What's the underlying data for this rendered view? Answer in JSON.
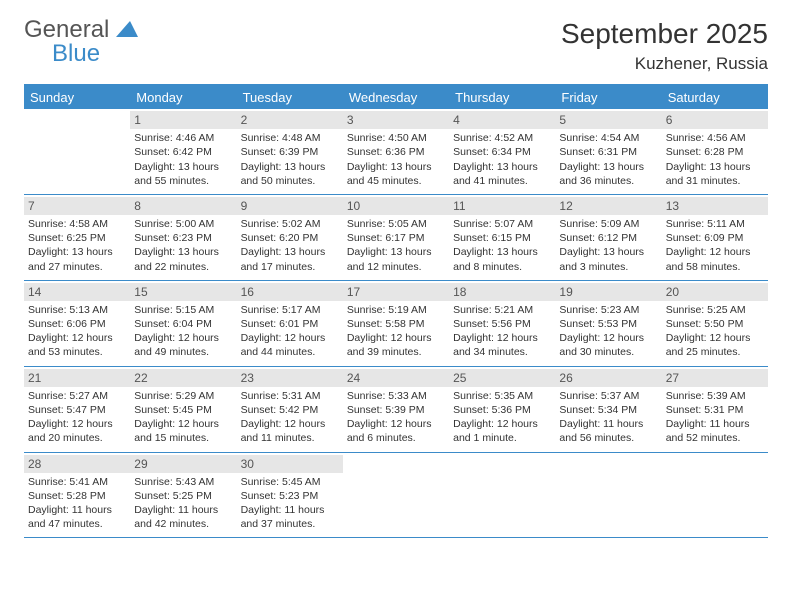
{
  "logo": {
    "line1": "General",
    "line2": "Blue"
  },
  "title": "September 2025",
  "location": "Kuzhener, Russia",
  "colors": {
    "accent": "#3b8bc9",
    "dayNumBg": "#e6e6e6",
    "text": "#333333",
    "headerText": "#ffffff"
  },
  "dayHeaders": [
    "Sunday",
    "Monday",
    "Tuesday",
    "Wednesday",
    "Thursday",
    "Friday",
    "Saturday"
  ],
  "weeks": [
    [
      {
        "n": "",
        "sr": "",
        "ss": "",
        "dl": ""
      },
      {
        "n": "1",
        "sr": "4:46 AM",
        "ss": "6:42 PM",
        "dl": "13 hours and 55 minutes."
      },
      {
        "n": "2",
        "sr": "4:48 AM",
        "ss": "6:39 PM",
        "dl": "13 hours and 50 minutes."
      },
      {
        "n": "3",
        "sr": "4:50 AM",
        "ss": "6:36 PM",
        "dl": "13 hours and 45 minutes."
      },
      {
        "n": "4",
        "sr": "4:52 AM",
        "ss": "6:34 PM",
        "dl": "13 hours and 41 minutes."
      },
      {
        "n": "5",
        "sr": "4:54 AM",
        "ss": "6:31 PM",
        "dl": "13 hours and 36 minutes."
      },
      {
        "n": "6",
        "sr": "4:56 AM",
        "ss": "6:28 PM",
        "dl": "13 hours and 31 minutes."
      }
    ],
    [
      {
        "n": "7",
        "sr": "4:58 AM",
        "ss": "6:25 PM",
        "dl": "13 hours and 27 minutes."
      },
      {
        "n": "8",
        "sr": "5:00 AM",
        "ss": "6:23 PM",
        "dl": "13 hours and 22 minutes."
      },
      {
        "n": "9",
        "sr": "5:02 AM",
        "ss": "6:20 PM",
        "dl": "13 hours and 17 minutes."
      },
      {
        "n": "10",
        "sr": "5:05 AM",
        "ss": "6:17 PM",
        "dl": "13 hours and 12 minutes."
      },
      {
        "n": "11",
        "sr": "5:07 AM",
        "ss": "6:15 PM",
        "dl": "13 hours and 8 minutes."
      },
      {
        "n": "12",
        "sr": "5:09 AM",
        "ss": "6:12 PM",
        "dl": "13 hours and 3 minutes."
      },
      {
        "n": "13",
        "sr": "5:11 AM",
        "ss": "6:09 PM",
        "dl": "12 hours and 58 minutes."
      }
    ],
    [
      {
        "n": "14",
        "sr": "5:13 AM",
        "ss": "6:06 PM",
        "dl": "12 hours and 53 minutes."
      },
      {
        "n": "15",
        "sr": "5:15 AM",
        "ss": "6:04 PM",
        "dl": "12 hours and 49 minutes."
      },
      {
        "n": "16",
        "sr": "5:17 AM",
        "ss": "6:01 PM",
        "dl": "12 hours and 44 minutes."
      },
      {
        "n": "17",
        "sr": "5:19 AM",
        "ss": "5:58 PM",
        "dl": "12 hours and 39 minutes."
      },
      {
        "n": "18",
        "sr": "5:21 AM",
        "ss": "5:56 PM",
        "dl": "12 hours and 34 minutes."
      },
      {
        "n": "19",
        "sr": "5:23 AM",
        "ss": "5:53 PM",
        "dl": "12 hours and 30 minutes."
      },
      {
        "n": "20",
        "sr": "5:25 AM",
        "ss": "5:50 PM",
        "dl": "12 hours and 25 minutes."
      }
    ],
    [
      {
        "n": "21",
        "sr": "5:27 AM",
        "ss": "5:47 PM",
        "dl": "12 hours and 20 minutes."
      },
      {
        "n": "22",
        "sr": "5:29 AM",
        "ss": "5:45 PM",
        "dl": "12 hours and 15 minutes."
      },
      {
        "n": "23",
        "sr": "5:31 AM",
        "ss": "5:42 PM",
        "dl": "12 hours and 11 minutes."
      },
      {
        "n": "24",
        "sr": "5:33 AM",
        "ss": "5:39 PM",
        "dl": "12 hours and 6 minutes."
      },
      {
        "n": "25",
        "sr": "5:35 AM",
        "ss": "5:36 PM",
        "dl": "12 hours and 1 minute."
      },
      {
        "n": "26",
        "sr": "5:37 AM",
        "ss": "5:34 PM",
        "dl": "11 hours and 56 minutes."
      },
      {
        "n": "27",
        "sr": "5:39 AM",
        "ss": "5:31 PM",
        "dl": "11 hours and 52 minutes."
      }
    ],
    [
      {
        "n": "28",
        "sr": "5:41 AM",
        "ss": "5:28 PM",
        "dl": "11 hours and 47 minutes."
      },
      {
        "n": "29",
        "sr": "5:43 AM",
        "ss": "5:25 PM",
        "dl": "11 hours and 42 minutes."
      },
      {
        "n": "30",
        "sr": "5:45 AM",
        "ss": "5:23 PM",
        "dl": "11 hours and 37 minutes."
      },
      {
        "n": "",
        "sr": "",
        "ss": "",
        "dl": ""
      },
      {
        "n": "",
        "sr": "",
        "ss": "",
        "dl": ""
      },
      {
        "n": "",
        "sr": "",
        "ss": "",
        "dl": ""
      },
      {
        "n": "",
        "sr": "",
        "ss": "",
        "dl": ""
      }
    ]
  ],
  "labels": {
    "sunrise": "Sunrise:",
    "sunset": "Sunset:",
    "daylight": "Daylight:"
  }
}
